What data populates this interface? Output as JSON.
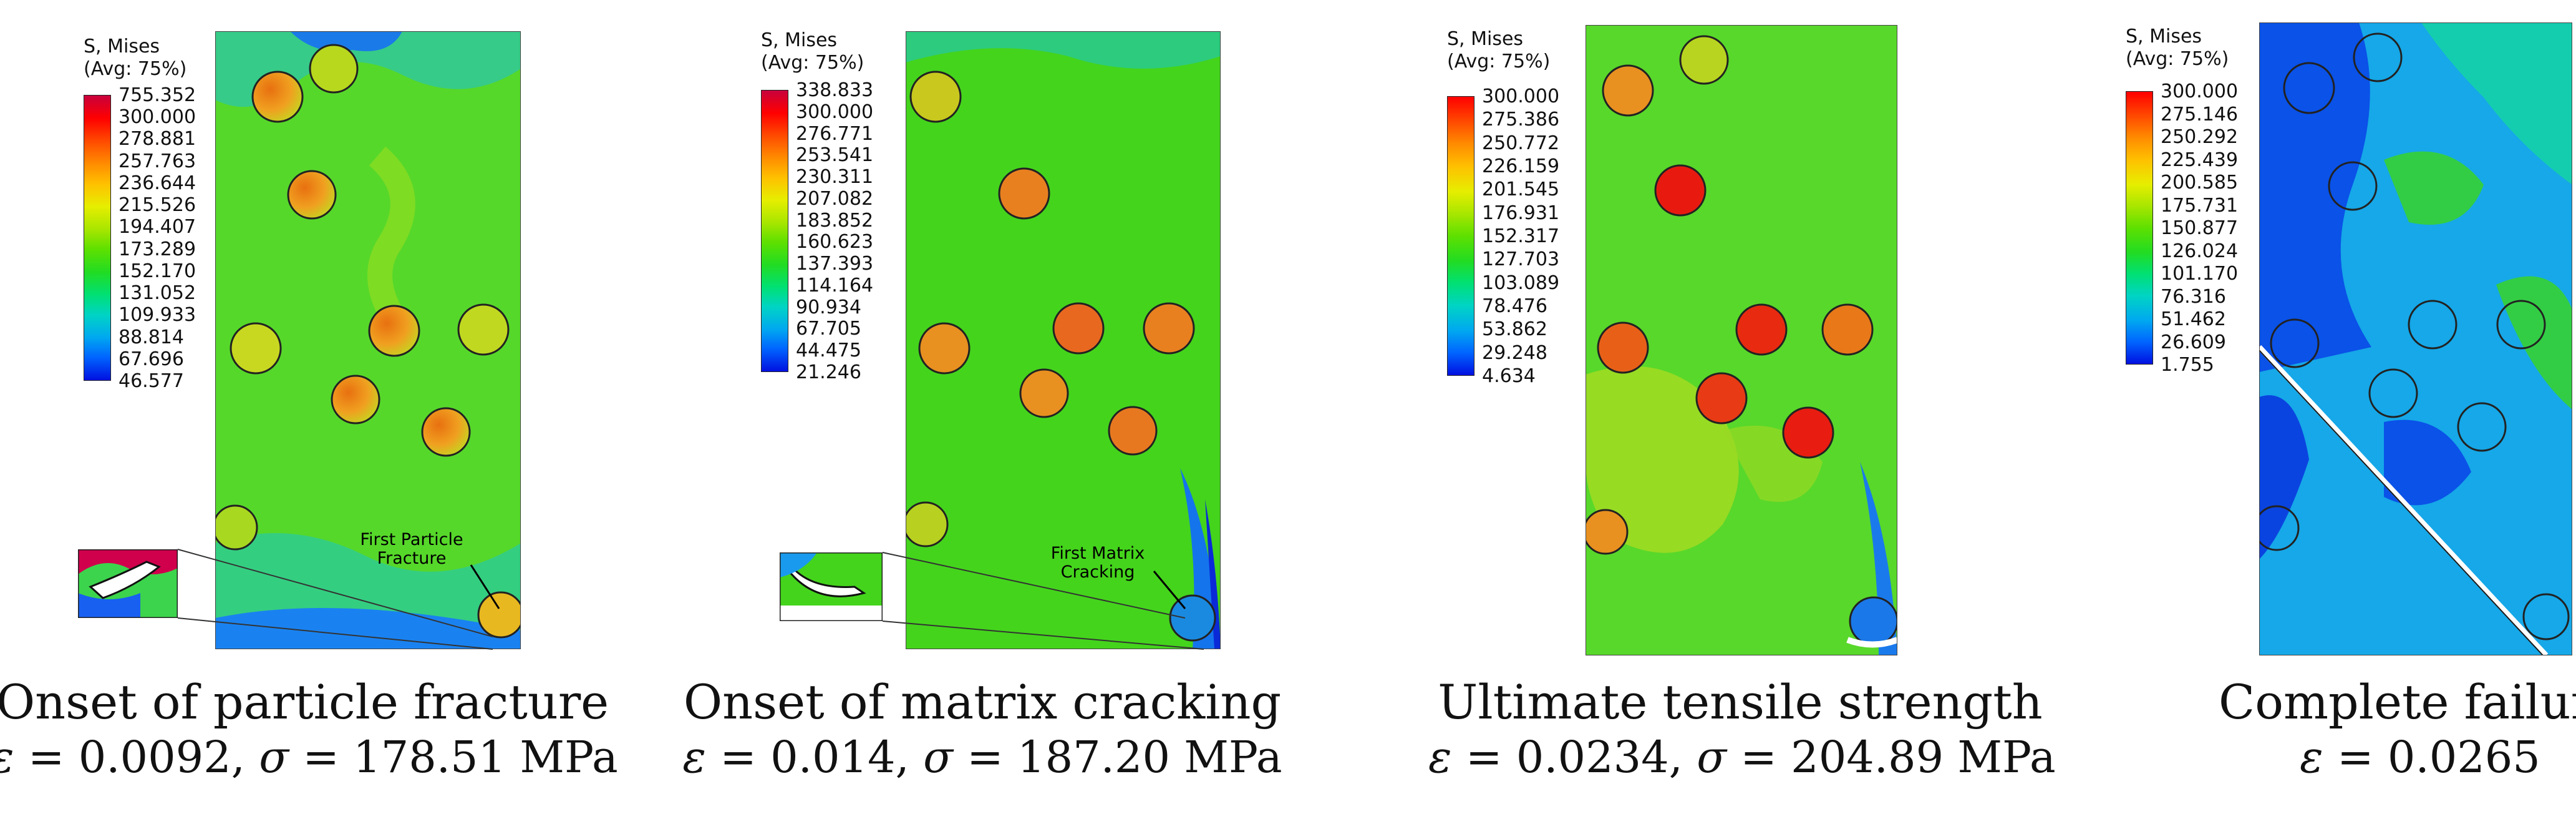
{
  "panels": [
    {
      "legend_title_1": "S, Mises",
      "legend_title_2": "(Avg: 75%)",
      "ticks": [
        "755.352",
        "300.000",
        "278.881",
        "257.763",
        "236.644",
        "215.526",
        "194.407",
        "173.289",
        "152.170",
        "131.052",
        "109.933",
        "88.814",
        "67.696",
        "46.577"
      ],
      "annotation_1": "First Particle",
      "annotation_2": "Fracture",
      "caption_title": "Onset of particle fracture",
      "eps_symbol": "ε",
      "eps_value": "= 0.0092,",
      "sigma_symbol": "σ",
      "sigma_value": "= 178.51 MPa"
    },
    {
      "legend_title_1": "S, Mises",
      "legend_title_2": "(Avg: 75%)",
      "ticks": [
        "338.833",
        "300.000",
        "276.771",
        "253.541",
        "230.311",
        "207.082",
        "183.852",
        "160.623",
        "137.393",
        "114.164",
        "90.934",
        "67.705",
        "44.475",
        "21.246"
      ],
      "annotation_1": "First Matrix",
      "annotation_2": "Cracking",
      "caption_title": "Onset of matrix cracking",
      "eps_symbol": "ε",
      "eps_value": "= 0.014,",
      "sigma_symbol": "σ",
      "sigma_value": "= 187.20 MPa"
    },
    {
      "legend_title_1": "S, Mises",
      "legend_title_2": "(Avg: 75%)",
      "ticks": [
        "300.000",
        "275.386",
        "250.772",
        "226.159",
        "201.545",
        "176.931",
        "152.317",
        "127.703",
        "103.089",
        "78.476",
        "53.862",
        "29.248",
        "4.634"
      ],
      "caption_title": "Ultimate tensile strength",
      "eps_symbol": "ε",
      "eps_value": "= 0.0234,",
      "sigma_symbol": "σ",
      "sigma_value": "= 204.89 MPa"
    },
    {
      "legend_title_1": "S, Mises",
      "legend_title_2": "(Avg: 75%)",
      "ticks": [
        "300.000",
        "275.146",
        "250.292",
        "225.439",
        "200.585",
        "175.731",
        "150.877",
        "126.024",
        "101.170",
        "76.316",
        "51.462",
        "26.609",
        "1.755"
      ],
      "caption_title": "Complete failure",
      "eps_symbol": "ε",
      "eps_value": "= 0.0265"
    }
  ],
  "colors": {
    "scale": [
      "#c8003c",
      "#ff0000",
      "#ff4a00",
      "#ff8c00",
      "#ffc000",
      "#e6ee00",
      "#a8e600",
      "#5ee000",
      "#22dc22",
      "#00e074",
      "#00d4c4",
      "#00a8f0",
      "#0064ff",
      "#0010e0"
    ],
    "matrix_green": "#48d818",
    "matrix_blue": "#0a6cf0",
    "particle_orange": "#e89018",
    "particle_red": "#e81010"
  }
}
